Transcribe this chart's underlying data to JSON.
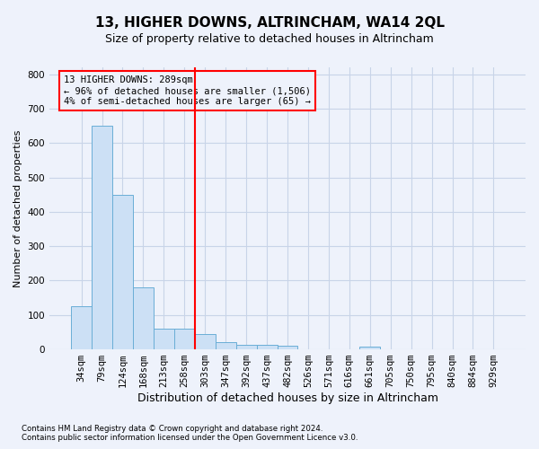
{
  "title": "13, HIGHER DOWNS, ALTRINCHAM, WA14 2QL",
  "subtitle": "Size of property relative to detached houses in Altrincham",
  "xlabel": "Distribution of detached houses by size in Altrincham",
  "ylabel": "Number of detached properties",
  "footnote1": "Contains HM Land Registry data © Crown copyright and database right 2024.",
  "footnote2": "Contains public sector information licensed under the Open Government Licence v3.0.",
  "bar_color": "#cce0f5",
  "bar_edge_color": "#6aaed6",
  "grid_color": "#c8d4e8",
  "vline_color": "red",
  "vline_x": 5.5,
  "annotation_line1": "13 HIGHER DOWNS: 289sqm",
  "annotation_line2": "← 96% of detached houses are smaller (1,506)",
  "annotation_line3": "4% of semi-detached houses are larger (65) →",
  "categories": [
    "34sqm",
    "79sqm",
    "124sqm",
    "168sqm",
    "213sqm",
    "258sqm",
    "303sqm",
    "347sqm",
    "392sqm",
    "437sqm",
    "482sqm",
    "526sqm",
    "571sqm",
    "616sqm",
    "661sqm",
    "705sqm",
    "750sqm",
    "795sqm",
    "840sqm",
    "884sqm",
    "929sqm"
  ],
  "values": [
    125,
    650,
    450,
    180,
    60,
    60,
    45,
    22,
    13,
    14,
    10,
    0,
    0,
    0,
    7,
    0,
    0,
    0,
    0,
    0,
    0
  ],
  "ylim": [
    0,
    820
  ],
  "yticks": [
    0,
    100,
    200,
    300,
    400,
    500,
    600,
    700,
    800
  ],
  "background_color": "#eef2fb",
  "title_fontsize": 11,
  "subtitle_fontsize": 9,
  "tick_fontsize": 7.5,
  "ylabel_fontsize": 8,
  "xlabel_fontsize": 9
}
